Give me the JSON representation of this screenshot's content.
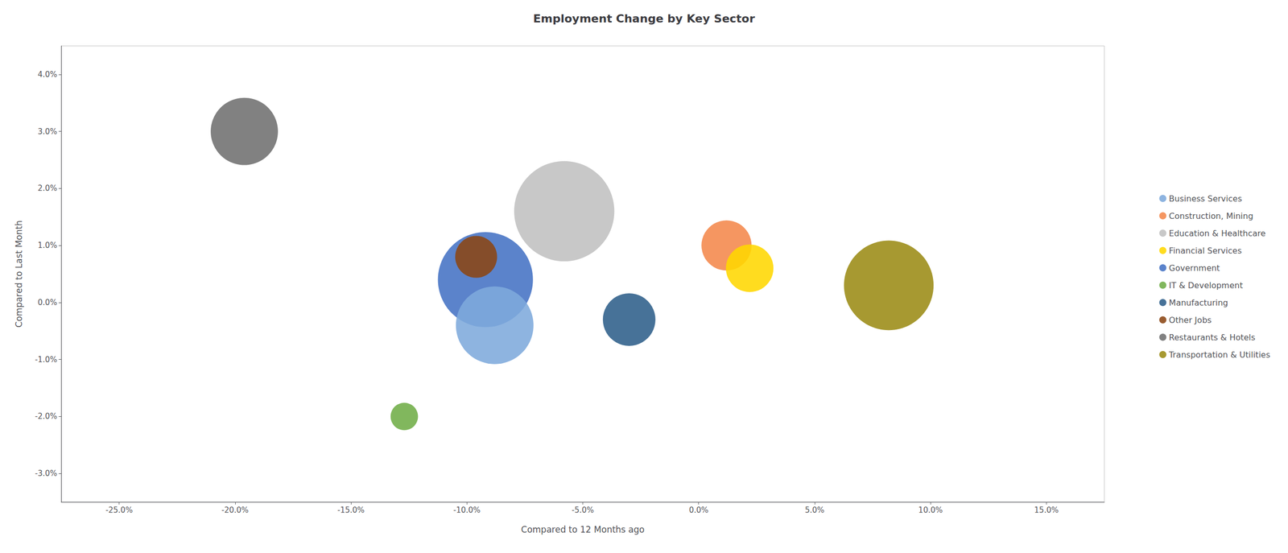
{
  "chart_data": {
    "type": "scatter",
    "title": "Employment Change by Key Sector",
    "xlabel": "Compared to 12 Months ago",
    "ylabel": "Compared to Last Month",
    "xlim": [
      -0.275,
      0.175
    ],
    "ylim": [
      -0.035,
      0.045
    ],
    "xticks": [
      {
        "value": -0.25,
        "label": "-25.0%"
      },
      {
        "value": -0.2,
        "label": "-20.0%"
      },
      {
        "value": -0.15,
        "label": "-15.0%"
      },
      {
        "value": -0.1,
        "label": "-10.0%"
      },
      {
        "value": -0.05,
        "label": "-5.0%"
      },
      {
        "value": 0.0,
        "label": "0.0%"
      },
      {
        "value": 0.05,
        "label": "5.0%"
      },
      {
        "value": 0.1,
        "label": "10.0%"
      },
      {
        "value": 0.15,
        "label": "15.0%"
      }
    ],
    "yticks": [
      {
        "value": -0.03,
        "label": "-3.0%"
      },
      {
        "value": -0.02,
        "label": "-2.0%"
      },
      {
        "value": -0.01,
        "label": "-1.0%"
      },
      {
        "value": 0.0,
        "label": "0.0%"
      },
      {
        "value": 0.01,
        "label": "1.0%"
      },
      {
        "value": 0.02,
        "label": "2.0%"
      },
      {
        "value": 0.03,
        "label": "3.0%"
      },
      {
        "value": 0.04,
        "label": "4.0%"
      }
    ],
    "grid": false,
    "legend": "right",
    "series": [
      {
        "name": "Business Services",
        "color": "#7EAADC",
        "x": -0.088,
        "y": -0.004,
        "size": 12000
      },
      {
        "name": "Construction, Mining",
        "color": "#F4874B",
        "x": 0.012,
        "y": 0.01,
        "size": 5000
      },
      {
        "name": "Education & Healthcare",
        "color": "#C0C0C0",
        "x": -0.058,
        "y": 0.016,
        "size": 20000
      },
      {
        "name": "Financial Services",
        "color": "#FFD700",
        "x": 0.022,
        "y": 0.006,
        "size": 4500
      },
      {
        "name": "Government",
        "color": "#4472C4",
        "x": -0.092,
        "y": 0.004,
        "size": 18000
      },
      {
        "name": "IT & Development",
        "color": "#70AD47",
        "x": -0.127,
        "y": -0.02,
        "size": 1500
      },
      {
        "name": "Manufacturing",
        "color": "#2E5F8A",
        "x": -0.03,
        "y": -0.003,
        "size": 5500
      },
      {
        "name": "Other Jobs",
        "color": "#8B4513",
        "x": -0.096,
        "y": 0.008,
        "size": 3500
      },
      {
        "name": "Restaurants & Hotels",
        "color": "#707070",
        "x": -0.196,
        "y": 0.03,
        "size": 9000
      },
      {
        "name": "Transportation & Utilities",
        "color": "#9B8B14",
        "x": 0.082,
        "y": 0.003,
        "size": 16000
      }
    ]
  }
}
